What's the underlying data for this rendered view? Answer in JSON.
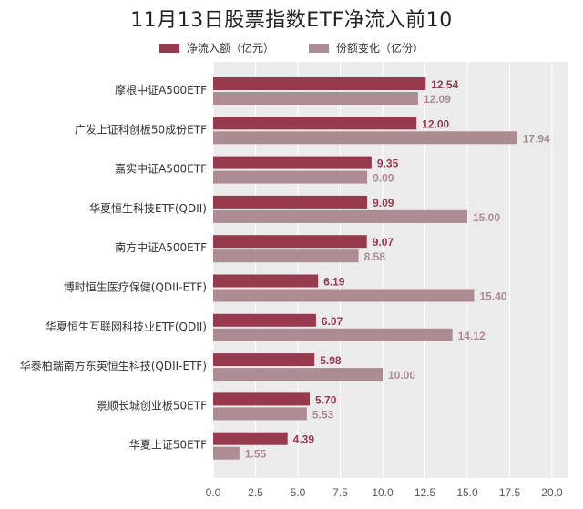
{
  "chart_data": {
    "type": "bar",
    "orientation": "horizontal",
    "title": "11月13日股票指数ETF净流入前10",
    "categories": [
      "摩根中证A500ETF",
      "广发上证科创板50成份ETF",
      "嘉实中证A500ETF",
      "华夏恒生科技ETF(QDII)",
      "南方中证A500ETF",
      "博时恒生医疗保健(QDII-ETF)",
      "华夏恒生互联网科技业ETF(QDII)",
      "华泰柏瑞南方东英恒生科技(QDII-ETF)",
      "景顺长城创业板50ETF",
      "华夏上证50ETF"
    ],
    "series": [
      {
        "name": "净流入额（亿元）",
        "color": "#973a4d",
        "values": [
          12.54,
          12.0,
          9.35,
          9.09,
          9.07,
          6.19,
          6.07,
          5.98,
          5.7,
          4.39
        ],
        "labels": [
          "12.54",
          "12.00",
          "9.35",
          "9.09",
          "9.07",
          "6.19",
          "6.07",
          "5.98",
          "5.70",
          "4.39"
        ]
      },
      {
        "name": "份额变化（亿份）",
        "color": "#ad8b93",
        "values": [
          12.09,
          17.94,
          9.09,
          15.0,
          8.58,
          15.4,
          14.12,
          10.0,
          5.53,
          1.55
        ],
        "labels": [
          "12.09",
          "17.94",
          "9.09",
          "15.00",
          "8.58",
          "15.40",
          "14.12",
          "10.00",
          "5.53",
          "1.55"
        ]
      }
    ],
    "xlim": [
      0,
      21
    ],
    "xticks": [
      "0.0",
      "2.5",
      "5.0",
      "7.5",
      "10.0",
      "12.5",
      "15.0",
      "17.5",
      "20.0"
    ],
    "xtick_values": [
      0,
      2.5,
      5,
      7.5,
      10,
      12.5,
      15,
      17.5,
      20
    ],
    "grid": true,
    "legend_position": "top-center",
    "plot_background": "#ebebeb",
    "grid_color": "#ffffff"
  }
}
